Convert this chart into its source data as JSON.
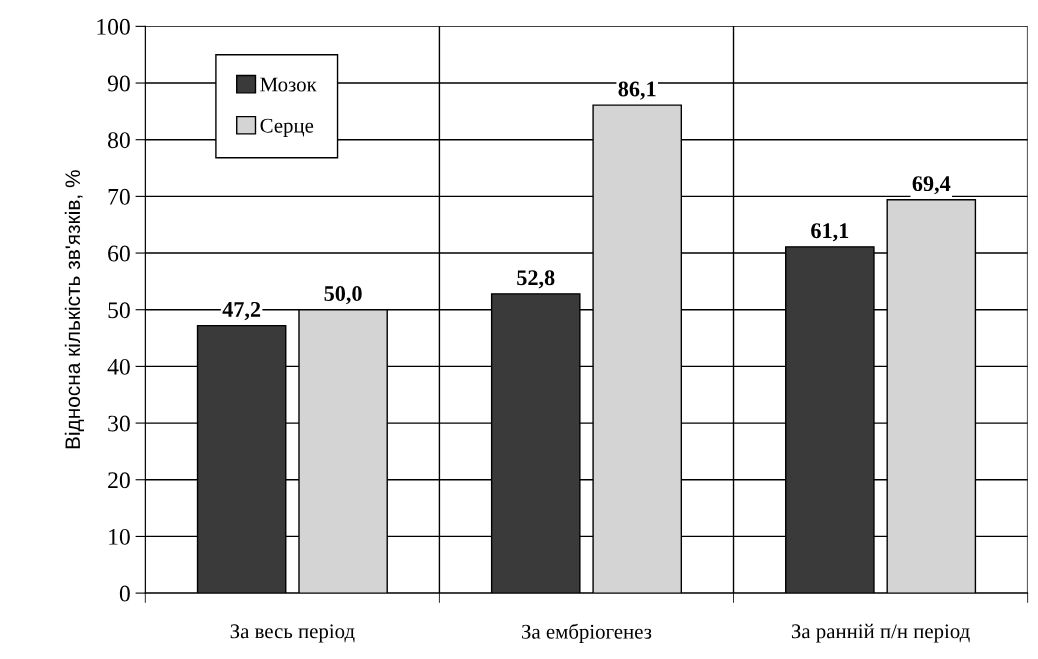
{
  "chart_data": {
    "type": "bar",
    "ylabel": "Відносна кількість зв'язків, %",
    "categories": [
      "За весь період",
      "За ембріогенез",
      "За ранній п/н період"
    ],
    "series": [
      {
        "name": "Мозок",
        "color": "#3a3a3a",
        "values": [
          47.2,
          52.8,
          61.1
        ],
        "value_labels": [
          "47,2",
          "52,8",
          "61,1"
        ]
      },
      {
        "name": "Серце",
        "color": "#d4d4d4",
        "values": [
          50.0,
          86.1,
          69.4
        ],
        "value_labels": [
          "50,0",
          "86,1",
          "69,4"
        ]
      }
    ],
    "ylim": [
      0,
      100
    ],
    "yticks": [
      0,
      10,
      20,
      30,
      40,
      50,
      60,
      70,
      80,
      90,
      100
    ],
    "grid": true,
    "legend": "top left"
  }
}
